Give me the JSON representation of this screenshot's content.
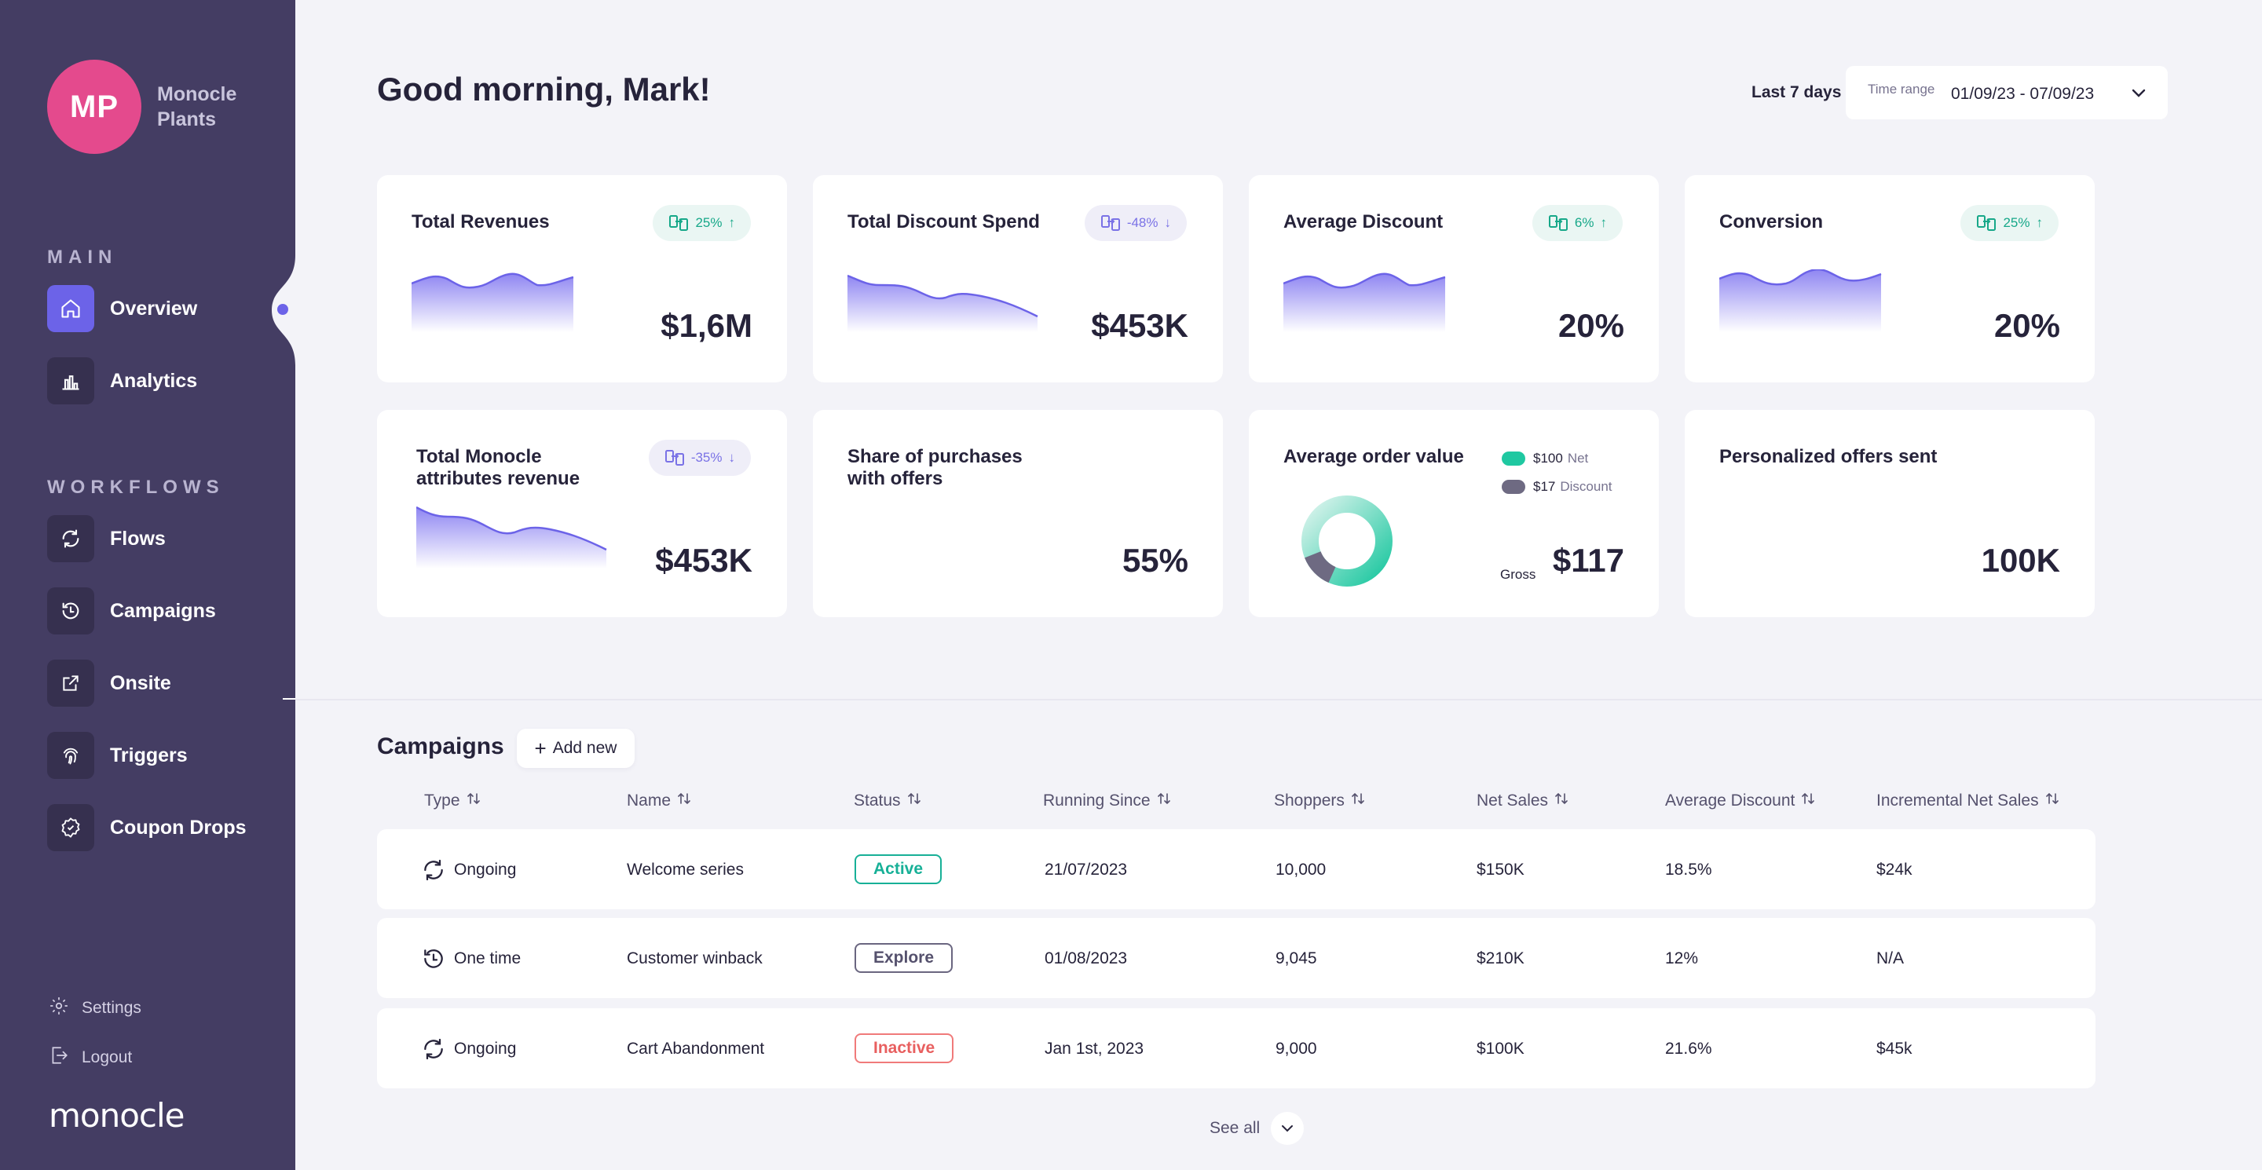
{
  "brand": {
    "initials": "MP",
    "name": "Monocle Plants",
    "logo_text": "monocle"
  },
  "sidebar": {
    "main_label": "MAIN",
    "main_items": [
      {
        "label": "Overview",
        "icon": "home-icon"
      },
      {
        "label": "Analytics",
        "icon": "bar-chart-icon"
      }
    ],
    "workflows_label": "WORKFLOWS",
    "workflow_items": [
      {
        "label": "Flows",
        "icon": "refresh-icon"
      },
      {
        "label": "Campaigns",
        "icon": "history-icon"
      },
      {
        "label": "Onsite",
        "icon": "external-link-icon"
      },
      {
        "label": "Triggers",
        "icon": "fingerprint-icon"
      },
      {
        "label": "Coupon Drops",
        "icon": "badge-icon"
      }
    ],
    "settings": "Settings",
    "logout": "Logout"
  },
  "header": {
    "greeting": "Good morning, Mark!",
    "range_label": "Last 7 days",
    "time_range_caption": "Time range",
    "time_range_value": "01/09/23 - 07/09/23"
  },
  "cards": [
    {
      "title": "Total Revenues",
      "value": "$1,6M",
      "badge": "25%",
      "trend": "up"
    },
    {
      "title": "Total Discount Spend",
      "value": "$453K",
      "badge": "-48%",
      "trend": "down"
    },
    {
      "title": "Average Discount",
      "value": "20%",
      "badge": "6%",
      "trend": "up"
    },
    {
      "title": "Conversion",
      "value": "20%",
      "badge": "25%",
      "trend": "up"
    },
    {
      "title": "Total Monocle attributes revenue",
      "value": "$453K",
      "badge": "-35%",
      "trend": "down"
    },
    {
      "title": "Share of purchases with offers",
      "value": "55%"
    },
    {
      "title": "Average order value",
      "value": "$117",
      "gross_label": "Gross",
      "legend": [
        {
          "amount": "$100",
          "label": "Net",
          "color": "#1FC8A1"
        },
        {
          "amount": "$17",
          "label": "Discount",
          "color": "#6E6A82"
        }
      ]
    },
    {
      "title": "Personalized offers sent",
      "value": "100K"
    }
  ],
  "colors": {
    "sidebar": "#443D63",
    "accent": "#6C63E8",
    "brand": "#E44A8D",
    "positive": "#17A889",
    "negative": "#E85F5F"
  },
  "campaigns": {
    "title": "Campaigns",
    "add_new": "Add new",
    "columns": [
      "Type",
      "Name",
      "Status",
      "Running Since",
      "Shoppers",
      "Net Sales",
      "Average Discount",
      "Incremental Net Sales"
    ],
    "rows": [
      {
        "type": "Ongoing",
        "type_icon": "refresh-icon",
        "name": "Welcome series",
        "status": "Active",
        "since": "21/07/2023",
        "shoppers": "10,000",
        "net_sales": "$150K",
        "avg_discount": "18.5%",
        "incremental": "$24k"
      },
      {
        "type": "One time",
        "type_icon": "history-icon",
        "name": "Customer winback",
        "status": "Explore",
        "since": "01/08/2023",
        "shoppers": "9,045",
        "net_sales": "$210K",
        "avg_discount": "12%",
        "incremental": "N/A"
      },
      {
        "type": "Ongoing",
        "type_icon": "refresh-icon",
        "name": "Cart Abandonment",
        "status": "Inactive",
        "since": "Jan 1st, 2023",
        "shoppers": "9,000",
        "net_sales": "$100K",
        "avg_discount": "21.6%",
        "incremental": "$45k"
      }
    ],
    "see_all": "See all"
  }
}
